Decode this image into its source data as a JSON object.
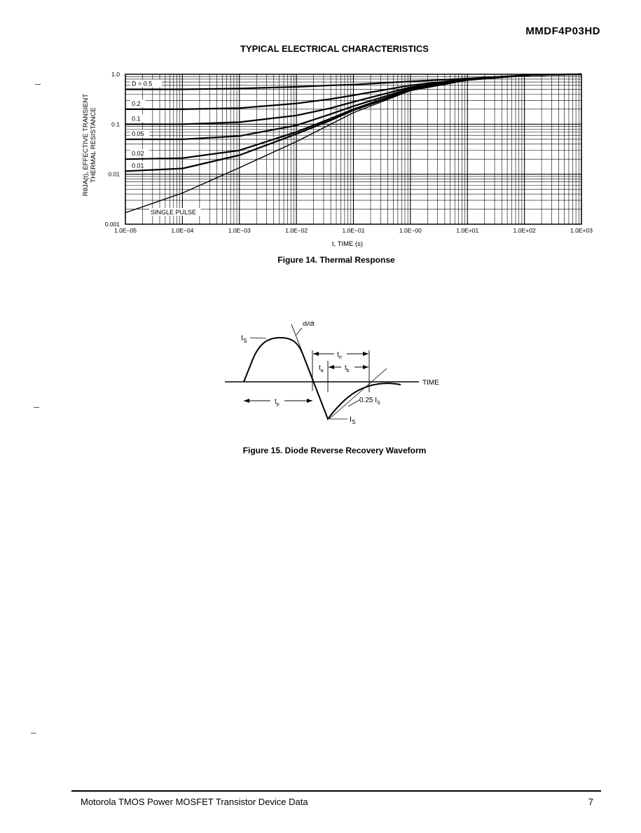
{
  "header": {
    "part_number": "MMDF4P03HD",
    "section_title": "TYPICAL ELECTRICAL CHARACTERISTICS"
  },
  "figure14": {
    "caption": "Figure 14. Thermal Response",
    "chart_data": {
      "type": "line",
      "log_x": true,
      "log_y": true,
      "xlabel": "t, TIME (s)",
      "ylabel_lines": [
        "RθJA(t), EFFECTIVE TRANSIENT",
        "THERMAL RESISTANCE"
      ],
      "xlim": [
        1e-05,
        1000
      ],
      "ylim": [
        0.001,
        1.0
      ],
      "x_ticks": [
        1e-05,
        0.0001,
        0.001,
        0.01,
        0.1,
        1,
        10,
        100,
        1000
      ],
      "x_tick_labels": [
        "1.0E−05",
        "1.0E−04",
        "1.0E−03",
        "1.0E−02",
        "1.0E−01",
        "1.0E−00",
        "1.0E+01",
        "1.0E+02",
        "1.0E+03"
      ],
      "y_ticks": [
        0.001,
        0.01,
        0.1,
        1.0
      ],
      "y_tick_labels": [
        "0.001",
        "0.01",
        "0.1",
        "1.0"
      ],
      "grid": true,
      "x": [
        1e-05,
        0.0001,
        0.001,
        0.01,
        0.04,
        0.1,
        1,
        10,
        100,
        1000
      ],
      "series": [
        {
          "name": "D = 0.5",
          "values": [
            0.5,
            0.5,
            0.52,
            0.56,
            0.6,
            0.62,
            0.72,
            0.82,
            0.95,
            1.0
          ]
        },
        {
          "name": "0.2",
          "values": [
            0.2,
            0.2,
            0.21,
            0.26,
            0.32,
            0.38,
            0.6,
            0.8,
            0.95,
            1.0
          ]
        },
        {
          "name": "0.1",
          "values": [
            0.1,
            0.1,
            0.11,
            0.15,
            0.21,
            0.28,
            0.55,
            0.79,
            0.95,
            1.0
          ]
        },
        {
          "name": "0.05",
          "values": [
            0.05,
            0.05,
            0.058,
            0.095,
            0.16,
            0.23,
            0.52,
            0.78,
            0.95,
            1.0
          ]
        },
        {
          "name": "0.02",
          "values": [
            0.02,
            0.021,
            0.03,
            0.07,
            0.13,
            0.2,
            0.5,
            0.77,
            0.95,
            1.0
          ]
        },
        {
          "name": "0.01",
          "values": [
            0.0115,
            0.013,
            0.024,
            0.064,
            0.12,
            0.19,
            0.48,
            0.77,
            0.95,
            1.0
          ]
        },
        {
          "name": "SINGLE PULSE",
          "values": [
            0.0017,
            0.0042,
            0.0135,
            0.045,
            0.1,
            0.17,
            0.47,
            0.76,
            0.95,
            1.0
          ]
        }
      ]
    }
  },
  "figure15": {
    "caption": "Figure 15. Diode Reverse Recovery Waveform",
    "labels": {
      "di_dt": "di/dt",
      "is_top_base": "I",
      "is_top_sub": "S",
      "trr_base": "t",
      "trr_sub": "rr",
      "ta_base": "t",
      "ta_sub": "a",
      "tb_base": "t",
      "tb_sub": "b",
      "time": "TIME",
      "tp_base": "t",
      "tp_sub": "p",
      "pct_base": "0.25 I",
      "pct_sub": "S",
      "is_bottom_base": "I",
      "is_bottom_sub": "S"
    }
  },
  "footer": {
    "left": "Motorola TMOS Power MOSFET Transistor Device Data",
    "page": "7"
  }
}
